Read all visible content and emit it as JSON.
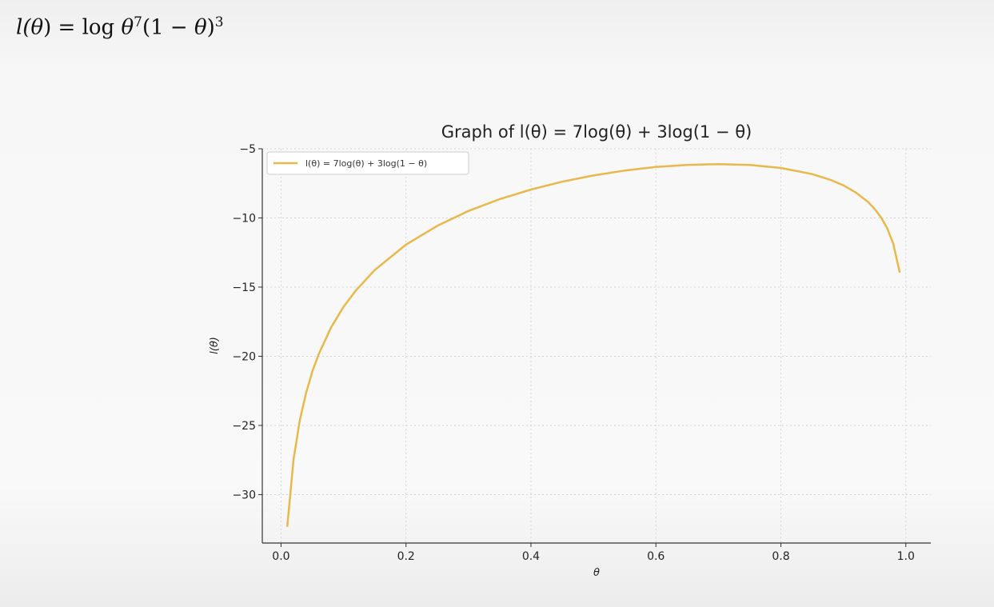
{
  "header": {
    "formula_lhs": "l(",
    "formula_theta": "θ",
    "formula_mid": ") = log ",
    "formula_theta2": "θ",
    "formula_exp1": "7",
    "formula_paren": "(1 − ",
    "formula_theta3": "θ",
    "formula_close": ")",
    "formula_exp2": "3"
  },
  "chart_data": {
    "type": "line",
    "title": "Graph of l(θ) = 7log(θ) + 3log(1 − θ)",
    "xlabel": "θ",
    "ylabel": "l(θ)",
    "xlim": [
      -0.03,
      1.04
    ],
    "ylim": [
      -33.5,
      -5
    ],
    "xticks": [
      0.0,
      0.2,
      0.4,
      0.6,
      0.8,
      1.0
    ],
    "xtick_labels": [
      "0.0",
      "0.2",
      "0.4",
      "0.6",
      "0.8",
      "1.0"
    ],
    "yticks": [
      -5,
      -10,
      -15,
      -20,
      -25,
      -30
    ],
    "ytick_labels": [
      "−5",
      "−10",
      "−15",
      "−20",
      "−25",
      "−30"
    ],
    "grid": true,
    "legend_position": "top-left",
    "series": [
      {
        "name": "l(θ) = 7log(θ) + 3log(1 − θ)",
        "color": "#e8b84a",
        "x": [
          0.01,
          0.02,
          0.03,
          0.04,
          0.05,
          0.06,
          0.08,
          0.1,
          0.12,
          0.15,
          0.2,
          0.25,
          0.3,
          0.35,
          0.4,
          0.45,
          0.5,
          0.55,
          0.6,
          0.65,
          0.7,
          0.75,
          0.8,
          0.85,
          0.88,
          0.9,
          0.92,
          0.94,
          0.95,
          0.96,
          0.97,
          0.98,
          0.99
        ],
        "y": [
          -32.27,
          -27.45,
          -24.64,
          -22.66,
          -21.12,
          -19.88,
          -17.93,
          -16.43,
          -15.23,
          -13.77,
          -11.93,
          -10.57,
          -9.5,
          -8.64,
          -7.95,
          -7.38,
          -6.93,
          -6.58,
          -6.32,
          -6.17,
          -6.11,
          -6.17,
          -6.39,
          -6.83,
          -7.26,
          -7.64,
          -8.16,
          -8.87,
          -9.35,
          -9.94,
          -10.73,
          -11.88,
          -13.89
        ]
      }
    ]
  }
}
